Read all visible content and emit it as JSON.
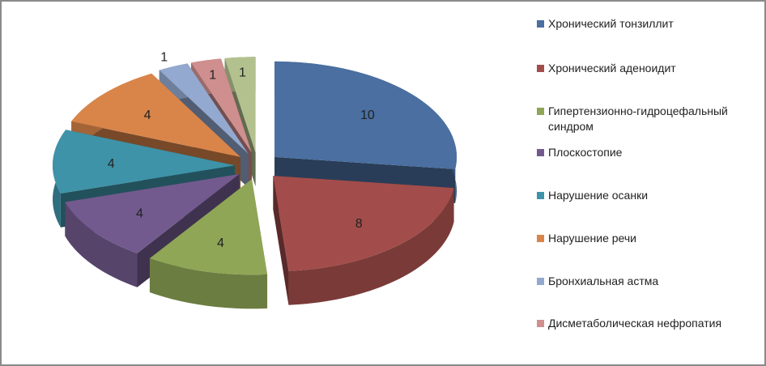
{
  "chart_data": {
    "type": "pie",
    "style": "3d-exploded",
    "legend_position": "right",
    "series": [
      {
        "name": "Хронический тонзиллит",
        "value": 10,
        "color": "#4a6fa0"
      },
      {
        "name": "Хронический аденоидит",
        "value": 8,
        "color": "#a24d4b"
      },
      {
        "name": "Гипертензионно-гидроцефальный синдром",
        "value": 4,
        "color": "#8fa657"
      },
      {
        "name": "Плоскостопие",
        "value": 4,
        "color": "#725a8e"
      },
      {
        "name": "Нарушение осанки",
        "value": 4,
        "color": "#3e93a8"
      },
      {
        "name": "Нарушение речи",
        "value": 4,
        "color": "#d9854a"
      },
      {
        "name": "Бронхиальная астма",
        "value": 1,
        "color": "#93a9cf"
      },
      {
        "name": "Дисметаболическая нефропатия",
        "value": 1,
        "color": "#cf8f8e"
      },
      {
        "name": "",
        "value": 1,
        "color": "#b3c18f"
      }
    ]
  }
}
